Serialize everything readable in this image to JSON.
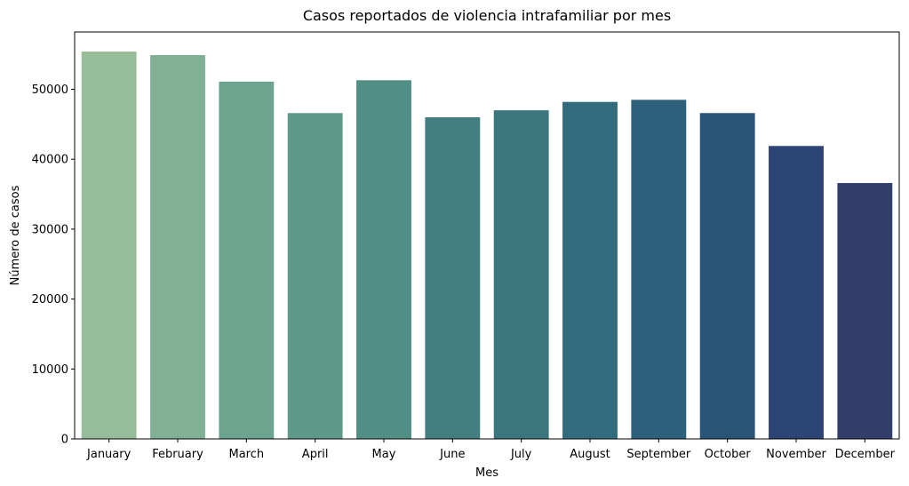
{
  "chart_data": {
    "type": "bar",
    "title": "Casos reportados de violencia intrafamiliar por mes",
    "xlabel": "Mes",
    "ylabel": "Número de casos",
    "categories": [
      "January",
      "February",
      "March",
      "April",
      "May",
      "June",
      "July",
      "August",
      "September",
      "October",
      "November",
      "December"
    ],
    "values": [
      55400,
      54900,
      51100,
      46600,
      51300,
      46000,
      47000,
      48200,
      48500,
      46600,
      41900,
      36600
    ],
    "colors": [
      "#97bc98",
      "#82b094",
      "#6da48f",
      "#5f998a",
      "#518e86",
      "#427e80",
      "#3b767f",
      "#336c7d",
      "#2c607b",
      "#2a5477",
      "#2d4574",
      "#333e6c"
    ],
    "ylim": [
      0,
      58200
    ],
    "yticks": [
      0,
      10000,
      20000,
      30000,
      40000,
      50000
    ],
    "grid": false,
    "legend": "none"
  }
}
